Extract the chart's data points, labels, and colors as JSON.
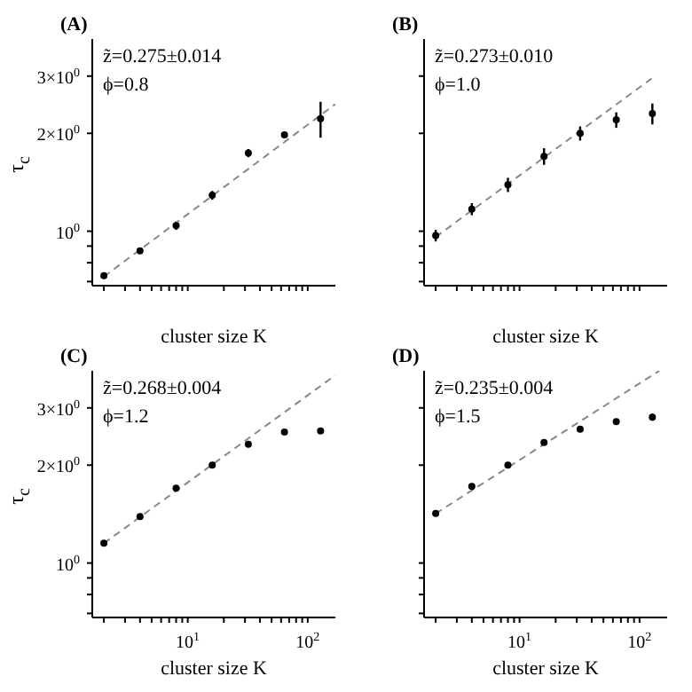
{
  "chart_data": [
    {
      "type": "scatter",
      "title": "(A)",
      "xlabel": "cluster size K",
      "ylabel": "τ$_{c}$",
      "annotations": [
        "z̃=0.275±0.014",
        "ϕ=0.8"
      ],
      "x": [
        2,
        4,
        8,
        16,
        32,
        64,
        128
      ],
      "xlim": [
        1.6,
        170
      ],
      "ylim": [
        0.68,
        3.9
      ],
      "log": "xy",
      "tick_labels": "y",
      "marker": "circle",
      "xticks": [
        {
          "value": 2,
          "label": null
        },
        {
          "value": 3,
          "label": null
        },
        {
          "value": 4,
          "label": null
        },
        {
          "value": 5,
          "label": null
        },
        {
          "value": 6,
          "label": null
        },
        {
          "value": 7,
          "label": null
        },
        {
          "value": 8,
          "label": null
        },
        {
          "value": 9,
          "label": null
        },
        {
          "value": 10,
          "label": null
        },
        {
          "value": 20,
          "label": null
        },
        {
          "value": 30,
          "label": null
        },
        {
          "value": 40,
          "label": null
        },
        {
          "value": 50,
          "label": null
        },
        {
          "value": 60,
          "label": null
        },
        {
          "value": 70,
          "label": null
        },
        {
          "value": 80,
          "label": null
        },
        {
          "value": 90,
          "label": null
        },
        {
          "value": 100,
          "label": null
        }
      ],
      "yticks": [
        {
          "value": 0.7,
          "label": null
        },
        {
          "value": 0.8,
          "label": null
        },
        {
          "value": 0.9,
          "label": null
        },
        {
          "value": 1,
          "label": "10$^{0}$"
        },
        {
          "value": 2,
          "label": "2×10$^{0}$"
        },
        {
          "value": 3,
          "label": "3×10$^{0}$"
        }
      ],
      "series": [
        {
          "color": "#000000",
          "values": [
            0.73,
            0.87,
            1.04,
            1.29,
            1.74,
            1.98,
            2.22
          ],
          "errors": [
            null,
            null,
            0.03,
            0.04,
            0.05,
            null,
            0.28
          ]
        },
        {
          "type": "line",
          "color": "#888888",
          "line_style": "dashed",
          "marker": "none",
          "x": [
            2,
            170
          ],
          "values": [
            0.725,
            2.46
          ]
        }
      ]
    },
    {
      "type": "scatter",
      "title": "(B)",
      "xlabel": "cluster size K",
      "annotations": [
        "z̃=0.273±0.010",
        "ϕ=1.0"
      ],
      "x": [
        2,
        4,
        8,
        16,
        32,
        64,
        128
      ],
      "xlim": [
        1.6,
        170
      ],
      "ylim": [
        0.68,
        3.9
      ],
      "log": "xy",
      "tick_labels": false,
      "marker": "circle",
      "xticks": [
        {
          "value": 2,
          "label": null
        },
        {
          "value": 3,
          "label": null
        },
        {
          "value": 4,
          "label": null
        },
        {
          "value": 5,
          "label": null
        },
        {
          "value": 6,
          "label": null
        },
        {
          "value": 7,
          "label": null
        },
        {
          "value": 8,
          "label": null
        },
        {
          "value": 9,
          "label": null
        },
        {
          "value": 10,
          "label": null
        },
        {
          "value": 20,
          "label": null
        },
        {
          "value": 30,
          "label": null
        },
        {
          "value": 40,
          "label": null
        },
        {
          "value": 50,
          "label": null
        },
        {
          "value": 60,
          "label": null
        },
        {
          "value": 70,
          "label": null
        },
        {
          "value": 80,
          "label": null
        },
        {
          "value": 90,
          "label": null
        },
        {
          "value": 100,
          "label": null
        }
      ],
      "yticks": [
        {
          "value": 0.7,
          "label": null
        },
        {
          "value": 0.8,
          "label": null
        },
        {
          "value": 0.9,
          "label": null
        },
        {
          "value": 1,
          "label": null
        },
        {
          "value": 2,
          "label": null
        },
        {
          "value": 3,
          "label": null
        }
      ],
      "series": [
        {
          "color": "#000000",
          "values": [
            0.97,
            1.17,
            1.39,
            1.7,
            2.0,
            2.2,
            2.3
          ],
          "errors": [
            0.04,
            0.05,
            0.07,
            0.1,
            0.1,
            0.12,
            0.17
          ]
        },
        {
          "type": "line",
          "color": "#888888",
          "line_style": "dashed",
          "marker": "none",
          "x": [
            2,
            128
          ],
          "values": [
            0.96,
            2.96
          ]
        }
      ]
    },
    {
      "type": "scatter",
      "title": "(C)",
      "xlabel": "cluster size K",
      "ylabel": "τ$_{c}$",
      "annotations": [
        "z̃=0.268±0.004",
        "ϕ=1.2"
      ],
      "x": [
        2,
        4,
        8,
        16,
        32,
        64,
        128
      ],
      "xlim": [
        1.6,
        170
      ],
      "ylim": [
        0.68,
        3.9
      ],
      "log": "xy",
      "marker": "circle",
      "xticks": [
        {
          "value": 2,
          "label": null
        },
        {
          "value": 3,
          "label": null
        },
        {
          "value": 4,
          "label": null
        },
        {
          "value": 5,
          "label": null
        },
        {
          "value": 6,
          "label": null
        },
        {
          "value": 7,
          "label": null
        },
        {
          "value": 8,
          "label": null
        },
        {
          "value": 9,
          "label": null
        },
        {
          "value": 10,
          "label": "10$^{1}$"
        },
        {
          "value": 20,
          "label": null
        },
        {
          "value": 30,
          "label": null
        },
        {
          "value": 40,
          "label": null
        },
        {
          "value": 50,
          "label": null
        },
        {
          "value": 60,
          "label": null
        },
        {
          "value": 70,
          "label": null
        },
        {
          "value": 80,
          "label": null
        },
        {
          "value": 90,
          "label": null
        },
        {
          "value": 100,
          "label": "10$^{2}$"
        }
      ],
      "yticks": [
        {
          "value": 0.7,
          "label": null
        },
        {
          "value": 0.8,
          "label": null
        },
        {
          "value": 0.9,
          "label": null
        },
        {
          "value": 1,
          "label": "10$^{0}$"
        },
        {
          "value": 2,
          "label": "2×10$^{0}$"
        },
        {
          "value": 3,
          "label": "3×10$^{0}$"
        }
      ],
      "series": [
        {
          "color": "#000000",
          "values": [
            1.15,
            1.39,
            1.7,
            2.0,
            2.32,
            2.53,
            2.55
          ],
          "errors": [
            null,
            null,
            null,
            null,
            null,
            null,
            0.05
          ]
        },
        {
          "type": "line",
          "color": "#888888",
          "line_style": "dashed",
          "marker": "none",
          "x": [
            2,
            170
          ],
          "values": [
            1.15,
            3.78
          ]
        }
      ]
    },
    {
      "type": "scatter",
      "title": "(D)",
      "xlabel": "cluster size K",
      "annotations": [
        "z̃=0.235±0.004",
        "ϕ=1.5"
      ],
      "x": [
        2,
        4,
        8,
        16,
        32,
        64,
        128
      ],
      "xlim": [
        1.6,
        170
      ],
      "ylim": [
        0.68,
        3.9
      ],
      "log": "xy",
      "tick_labels": "x",
      "marker": "circle",
      "xticks": [
        {
          "value": 2,
          "label": null
        },
        {
          "value": 3,
          "label": null
        },
        {
          "value": 4,
          "label": null
        },
        {
          "value": 5,
          "label": null
        },
        {
          "value": 6,
          "label": null
        },
        {
          "value": 7,
          "label": null
        },
        {
          "value": 8,
          "label": null
        },
        {
          "value": 9,
          "label": null
        },
        {
          "value": 10,
          "label": "10$^{1}$"
        },
        {
          "value": 20,
          "label": null
        },
        {
          "value": 30,
          "label": null
        },
        {
          "value": 40,
          "label": null
        },
        {
          "value": 50,
          "label": null
        },
        {
          "value": 60,
          "label": null
        },
        {
          "value": 70,
          "label": null
        },
        {
          "value": 80,
          "label": null
        },
        {
          "value": 90,
          "label": null
        },
        {
          "value": 100,
          "label": "10$^{2}$"
        }
      ],
      "yticks": [
        {
          "value": 0.7,
          "label": null
        },
        {
          "value": 0.8,
          "label": null
        },
        {
          "value": 0.9,
          "label": null
        },
        {
          "value": 1,
          "label": null
        },
        {
          "value": 2,
          "label": null
        },
        {
          "value": 3,
          "label": null
        }
      ],
      "series": [
        {
          "color": "#000000",
          "values": [
            1.42,
            1.72,
            2.0,
            2.35,
            2.58,
            2.72,
            2.81
          ],
          "errors": [
            null,
            null,
            null,
            null,
            null,
            null,
            0.07
          ]
        },
        {
          "type": "line",
          "color": "#888888",
          "line_style": "dashed",
          "marker": "none",
          "x": [
            2,
            146
          ],
          "values": [
            1.42,
            3.9
          ]
        }
      ]
    }
  ]
}
